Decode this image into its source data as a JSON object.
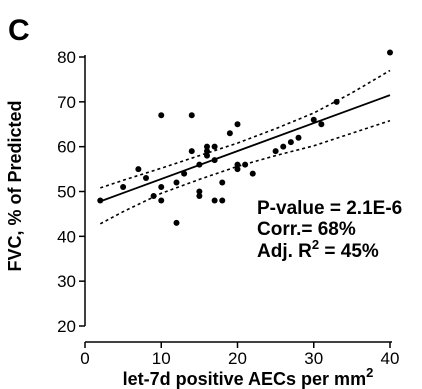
{
  "panel_label": "C",
  "chart_data": {
    "type": "scatter",
    "xlabel": "let-7d positive AECs per mm",
    "xlabel_sup": "2",
    "ylabel": "FVC, % of Predicted",
    "xlim": [
      0,
      40
    ],
    "ylim": [
      20,
      80
    ],
    "xticks": [
      0,
      10,
      20,
      30,
      40
    ],
    "yticks": [
      20,
      30,
      40,
      50,
      60,
      70,
      80
    ],
    "grid": false,
    "points": [
      [
        2,
        48
      ],
      [
        5,
        51
      ],
      [
        7,
        55
      ],
      [
        8,
        53
      ],
      [
        9,
        49
      ],
      [
        10,
        67
      ],
      [
        10,
        51
      ],
      [
        10,
        48
      ],
      [
        12,
        43
      ],
      [
        12,
        52
      ],
      [
        13,
        54
      ],
      [
        14,
        59
      ],
      [
        14,
        67
      ],
      [
        15,
        56
      ],
      [
        15,
        50
      ],
      [
        15,
        49
      ],
      [
        16,
        58
      ],
      [
        16,
        60
      ],
      [
        16,
        59
      ],
      [
        17,
        57
      ],
      [
        17,
        48
      ],
      [
        17,
        60
      ],
      [
        18,
        48
      ],
      [
        18,
        52
      ],
      [
        19,
        63
      ],
      [
        20,
        65
      ],
      [
        20,
        56
      ],
      [
        20,
        55
      ],
      [
        21,
        56
      ],
      [
        22,
        54
      ],
      [
        25,
        59
      ],
      [
        26,
        60
      ],
      [
        27,
        61
      ],
      [
        28,
        62
      ],
      [
        30,
        66
      ],
      [
        31,
        65
      ],
      [
        33,
        70
      ],
      [
        40,
        81
      ]
    ],
    "fit_line": {
      "x": [
        2,
        40
      ],
      "y": [
        47.8,
        71.5
      ]
    },
    "ci_upper": {
      "x": [
        2,
        5,
        10,
        15,
        20,
        25,
        30,
        35,
        40
      ],
      "y": [
        50.8,
        52.5,
        55.2,
        58.0,
        60.8,
        64.0,
        67.5,
        72.0,
        77.0
      ]
    },
    "ci_lower": {
      "x": [
        2,
        5,
        10,
        15,
        20,
        25,
        30,
        35,
        40
      ],
      "y": [
        42.8,
        45.5,
        49.6,
        52.7,
        55.6,
        58.0,
        60.2,
        63.0,
        65.8
      ]
    },
    "annotations": {
      "p_value": "P-value = 2.1E-6",
      "corr": "Corr.= 68%",
      "adj_r2_prefix": "Adj. R",
      "adj_r2_sup": "2",
      "adj_r2_suffix": " = 45%"
    }
  }
}
